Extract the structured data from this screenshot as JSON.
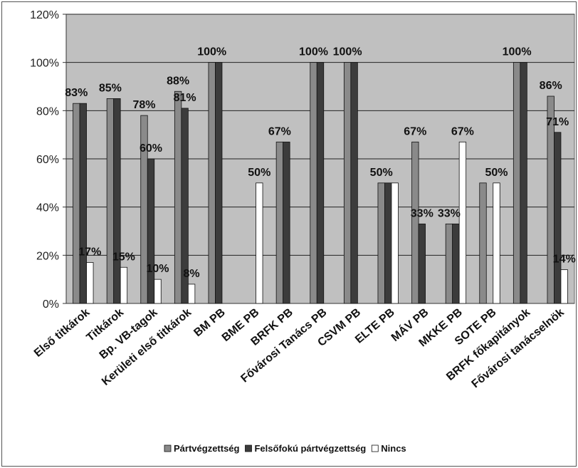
{
  "chart_data": {
    "type": "bar",
    "categories": [
      "Első titkárok",
      "Titkárok",
      "Bp. VB-tagok",
      "Kerületi első titkárok",
      "BM PB",
      "BME PB",
      "BRFK PB",
      "Fővárosi Tanács PB",
      "CSVM PB",
      "ELTE PB",
      "MÁV PB",
      "MKKE PB",
      "SOTE PB",
      "BRFK főkapitányok",
      "Fővárosi tanácselnök"
    ],
    "series": [
      {
        "name": "Pártvégzettség",
        "color": "#8a8a8a",
        "values": [
          83,
          85,
          78,
          88,
          100,
          0,
          67,
          100,
          100,
          50,
          67,
          33,
          50,
          100,
          86
        ],
        "labels": [
          "83%",
          "85%",
          "78%",
          "88%",
          "100%",
          "",
          "67%",
          "100%",
          "100%",
          "50%",
          "67%",
          "33%",
          "",
          "100%",
          "86%"
        ]
      },
      {
        "name": "Felsőfokú pártvégzettség",
        "color": "#3c3c3c",
        "values": [
          83,
          85,
          60,
          81,
          100,
          0,
          67,
          100,
          100,
          50,
          33,
          33,
          0,
          100,
          71
        ],
        "labels": [
          "",
          "",
          "60%",
          "81%",
          "",
          "",
          "",
          "",
          "",
          "",
          "33%",
          "",
          "",
          "",
          "71%"
        ]
      },
      {
        "name": "Nincs",
        "color": "#ffffff",
        "values": [
          17,
          15,
          10,
          8,
          0,
          50,
          0,
          0,
          0,
          50,
          0,
          67,
          50,
          0,
          14
        ],
        "labels": [
          "17%",
          "15%",
          "10%",
          "8%",
          "",
          "50%",
          "",
          "",
          "",
          "",
          "",
          "67%",
          "50%",
          "",
          "14%"
        ]
      }
    ],
    "yticks": [
      "0%",
      "20%",
      "40%",
      "60%",
      "80%",
      "100%",
      "120%"
    ],
    "ylim": [
      0,
      120
    ],
    "grid": true,
    "legend": "bottom"
  }
}
